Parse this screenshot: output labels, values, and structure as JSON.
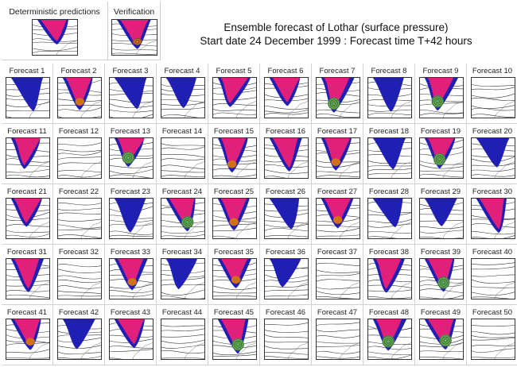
{
  "header": {
    "deterministic_label": "Deterministic predictions",
    "verification_label": "Verification",
    "title_line1": "Ensemble forecast of Lothar (surface pressure)",
    "title_line2": "Start date 24 December 1999 : Forecast time T+42 hours"
  },
  "colors": {
    "intense": "#e0207a",
    "moderate": "#1f1fb4",
    "core": "#5fb050",
    "center": "#d07018",
    "isobar": "#333333"
  },
  "forecasts": [
    {
      "label": "Forecast 1",
      "storm": "low"
    },
    {
      "label": "Forecast 2",
      "storm": "strong"
    },
    {
      "label": "Forecast 3",
      "storm": "low"
    },
    {
      "label": "Forecast 4",
      "storm": "low"
    },
    {
      "label": "Forecast 5",
      "storm": "medium"
    },
    {
      "label": "Forecast 6",
      "storm": "medium"
    },
    {
      "label": "Forecast 7",
      "storm": "cyclone"
    },
    {
      "label": "Forecast 8",
      "storm": "low"
    },
    {
      "label": "Forecast 9",
      "storm": "cyclone"
    },
    {
      "label": "Forecast 10",
      "storm": "none"
    },
    {
      "label": "Forecast 11",
      "storm": "medium"
    },
    {
      "label": "Forecast 12",
      "storm": "none"
    },
    {
      "label": "Forecast 13",
      "storm": "cyclone"
    },
    {
      "label": "Forecast 14",
      "storm": "none"
    },
    {
      "label": "Forecast 15",
      "storm": "strong"
    },
    {
      "label": "Forecast 16",
      "storm": "medium"
    },
    {
      "label": "Forecast 17",
      "storm": "strong"
    },
    {
      "label": "Forecast 18",
      "storm": "low"
    },
    {
      "label": "Forecast 19",
      "storm": "cyclone"
    },
    {
      "label": "Forecast 20",
      "storm": "low"
    },
    {
      "label": "Forecast 21",
      "storm": "medium"
    },
    {
      "label": "Forecast 22",
      "storm": "none"
    },
    {
      "label": "Forecast 23",
      "storm": "low"
    },
    {
      "label": "Forecast 24",
      "storm": "cyclone"
    },
    {
      "label": "Forecast 25",
      "storm": "strong"
    },
    {
      "label": "Forecast 26",
      "storm": "low"
    },
    {
      "label": "Forecast 27",
      "storm": "strong"
    },
    {
      "label": "Forecast 28",
      "storm": "low"
    },
    {
      "label": "Forecast 29",
      "storm": "low"
    },
    {
      "label": "Forecast 30",
      "storm": "medium"
    },
    {
      "label": "Forecast 31",
      "storm": "medium"
    },
    {
      "label": "Forecast 32",
      "storm": "none"
    },
    {
      "label": "Forecast 33",
      "storm": "strong"
    },
    {
      "label": "Forecast 34",
      "storm": "low"
    },
    {
      "label": "Forecast 35",
      "storm": "strong"
    },
    {
      "label": "Forecast 36",
      "storm": "low"
    },
    {
      "label": "Forecast 37",
      "storm": "none"
    },
    {
      "label": "Forecast 38",
      "storm": "medium"
    },
    {
      "label": "Forecast 39",
      "storm": "cyclone"
    },
    {
      "label": "Forecast 40",
      "storm": "none"
    },
    {
      "label": "Forecast 41",
      "storm": "strong"
    },
    {
      "label": "Forecast 42",
      "storm": "low"
    },
    {
      "label": "Forecast 43",
      "storm": "medium"
    },
    {
      "label": "Forecast 44",
      "storm": "none"
    },
    {
      "label": "Forecast 45",
      "storm": "cyclone"
    },
    {
      "label": "Forecast 46",
      "storm": "none"
    },
    {
      "label": "Forecast 47",
      "storm": "none"
    },
    {
      "label": "Forecast 48",
      "storm": "cyclone"
    },
    {
      "label": "Forecast 49",
      "storm": "cyclone"
    },
    {
      "label": "Forecast 50",
      "storm": "none"
    }
  ]
}
